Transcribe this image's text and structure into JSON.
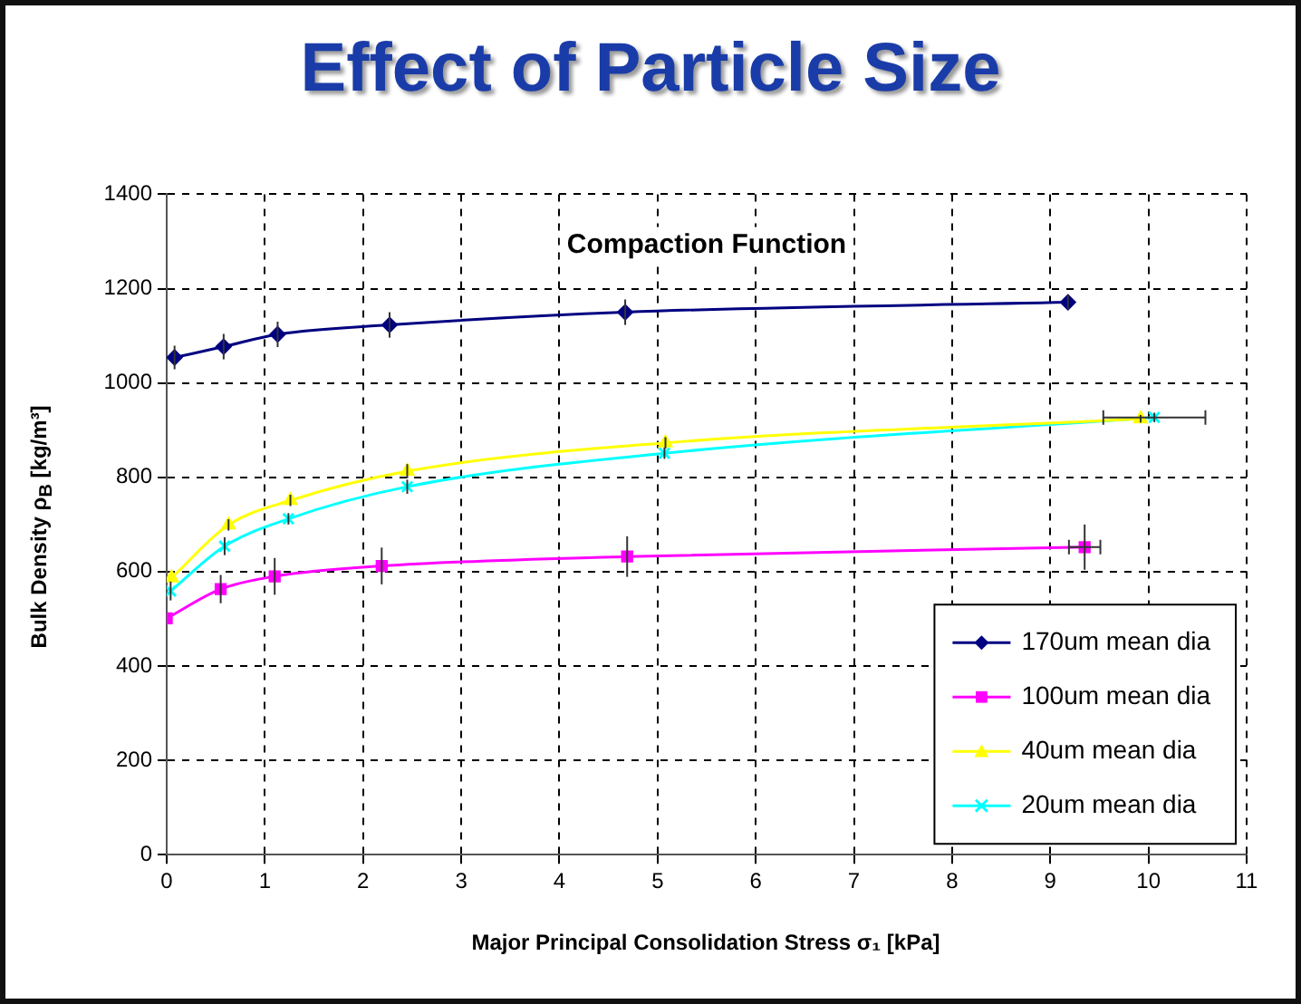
{
  "chart_data": {
    "type": "line",
    "title": "Effect of Particle Size",
    "subtitle": "Compaction Function",
    "xlabel": "Major Principal Consolidation Stress σ₁ [kPa]",
    "ylabel": "Bulk Density ρ$_{B}$ [kg/m³]",
    "xlim": [
      0,
      11
    ],
    "xticks": [
      0,
      1,
      2,
      3,
      4,
      5,
      6,
      7,
      8,
      9,
      10,
      11
    ],
    "ylim": [
      0,
      1400
    ],
    "yticks": [
      0,
      200,
      400,
      600,
      800,
      1000,
      1200,
      1400
    ],
    "grid": true,
    "legend": "bottom right",
    "series": [
      {
        "name": "170um mean dia",
        "color": "#000080",
        "marker": "diamond",
        "x": [
          0.08,
          0.58,
          1.13,
          2.27,
          4.67,
          9.18
        ],
        "values": [
          1054,
          1077,
          1103,
          1123,
          1150,
          1171
        ],
        "errors": [
          25,
          27,
          27,
          27,
          27,
          15
        ]
      },
      {
        "name": "100um mean dia",
        "color": "#ff00ff",
        "marker": "square",
        "x": [
          0.0,
          0.55,
          1.1,
          2.19,
          4.69,
          9.35
        ],
        "values": [
          501,
          563,
          590,
          612,
          632,
          652
        ],
        "errors": [
          null,
          30,
          39,
          39,
          43,
          48
        ],
        "xerrors": [
          null,
          null,
          null,
          null,
          null,
          0.16
        ]
      },
      {
        "name": "40um mean dia",
        "color": "#ffff00",
        "marker": "triangle",
        "x": [
          0.05,
          0.63,
          1.26,
          2.45,
          5.08,
          9.92
        ],
        "values": [
          587,
          699,
          751,
          813,
          873,
          924
        ],
        "errors": [
          null,
          12,
          12,
          15,
          12,
          8
        ]
      },
      {
        "name": "20um mean dia",
        "color": "#00ffff",
        "marker": "cross",
        "x": [
          0.04,
          0.59,
          1.24,
          2.45,
          5.07,
          10.06
        ],
        "values": [
          559,
          654,
          712,
          780,
          851,
          927
        ],
        "errors": [
          20,
          19,
          12,
          15,
          12,
          10
        ],
        "xerrors": [
          null,
          null,
          null,
          null,
          null,
          0.52
        ]
      }
    ]
  }
}
